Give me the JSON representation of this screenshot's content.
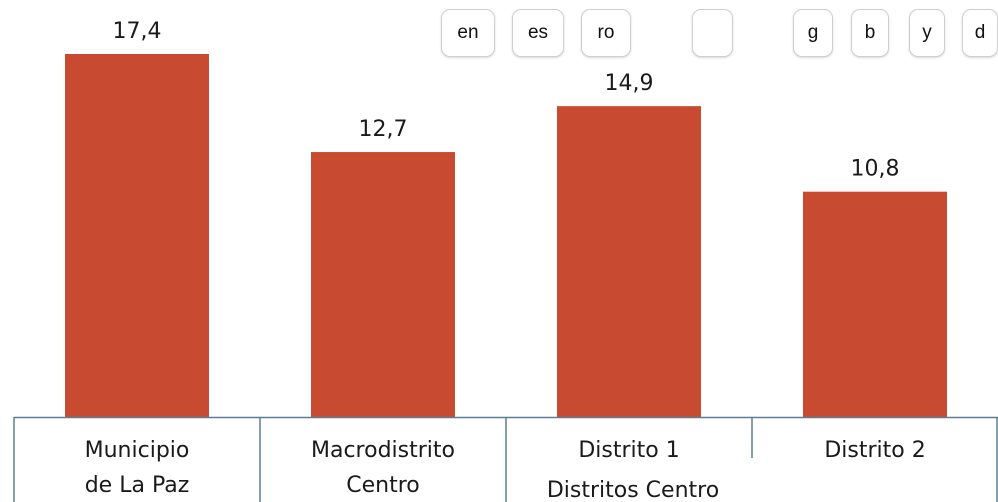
{
  "toolbar": {
    "buttons": [
      {
        "label": "en"
      },
      {
        "label": "es"
      },
      {
        "label": "ro"
      },
      {
        "label": ""
      },
      {
        "label": "g"
      },
      {
        "label": "b"
      },
      {
        "label": "y"
      },
      {
        "label": "d"
      }
    ]
  },
  "chart_data": {
    "type": "bar",
    "title": "",
    "xlabel": "",
    "ylabel": "",
    "categories": [
      [
        "Municipio",
        "de La Paz"
      ],
      [
        "Macrodistrito",
        "Centro"
      ],
      [
        "Distrito 1"
      ],
      [
        "Distrito 2"
      ]
    ],
    "values": [
      17.4,
      12.7,
      14.9,
      10.8
    ],
    "value_labels": [
      "17,4",
      "12,7",
      "14,9",
      "10,8"
    ],
    "group_label": "Distritos Centro",
    "colors": {
      "bar": "#c84b31",
      "axis": "#5a7f95"
    }
  }
}
